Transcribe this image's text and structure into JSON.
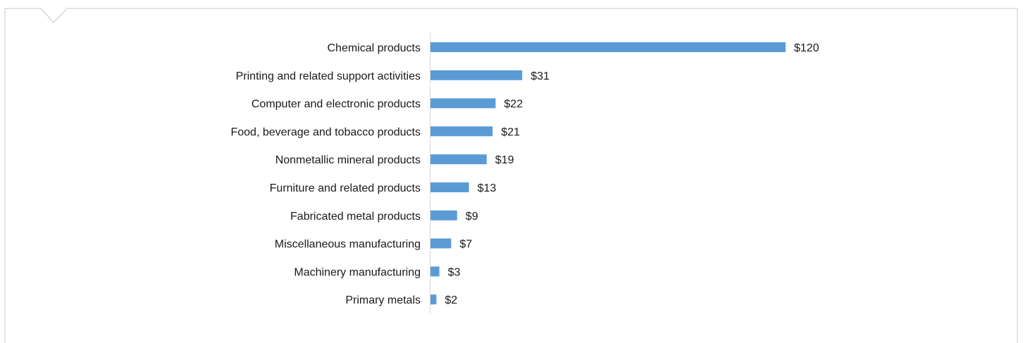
{
  "chart_data": {
    "type": "bar",
    "orientation": "horizontal",
    "categories": [
      "Chemical products",
      "Printing and related support activities",
      "Computer and electronic products",
      "Food, beverage and tobacco products",
      "Nonmetallic mineral products",
      "Furniture and related products",
      "Fabricated metal products",
      "Miscellaneous manufacturing",
      "Machinery manufacturing",
      "Primary metals"
    ],
    "values": [
      120,
      31,
      22,
      21,
      19,
      13,
      9,
      7,
      3,
      2
    ],
    "value_labels": [
      "$120",
      "$31",
      "$22",
      "$21",
      "$19",
      "$13",
      "$9",
      "$7",
      "$3",
      "$2"
    ],
    "title": "",
    "xlabel": "",
    "ylabel": "",
    "xlim": [
      0,
      120
    ],
    "grid": false,
    "legend": "none",
    "bar_color": "#5b9bd5",
    "axis_color": "#d9d9d9"
  },
  "frame_color": "#c8c8c8"
}
